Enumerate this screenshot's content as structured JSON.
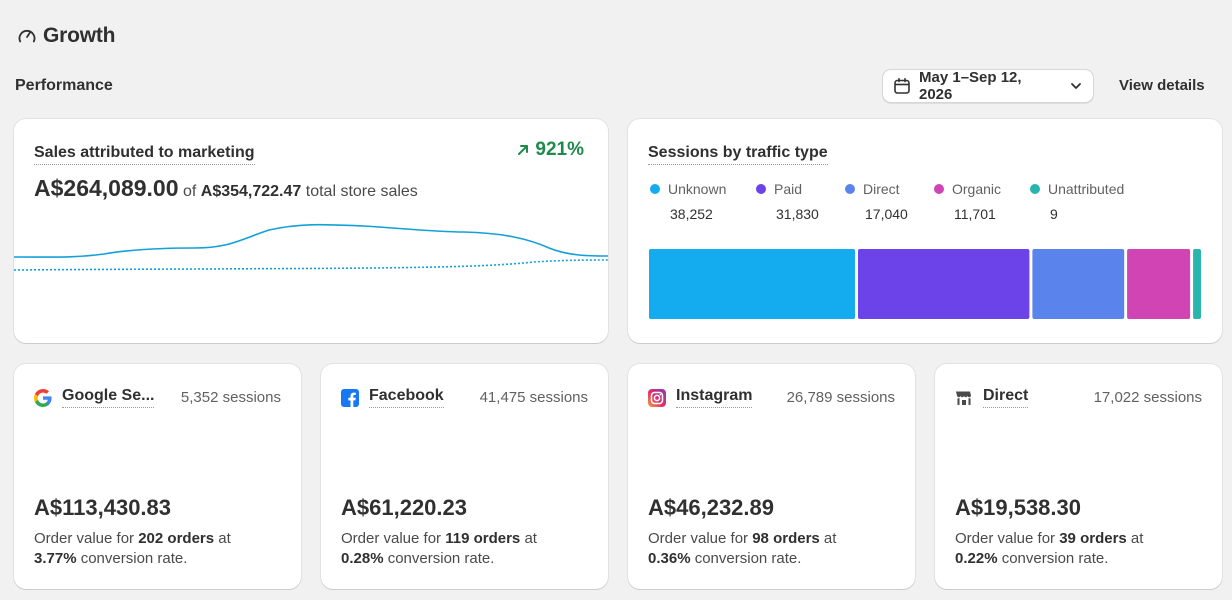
{
  "page": {
    "title": "Growth",
    "title_icon": "gauge-icon"
  },
  "performance": {
    "label": "Performance",
    "date_range": "May 1–Sep 12, 2026",
    "view_details": "View details"
  },
  "sales": {
    "title": "Sales attributed to marketing",
    "growth": "921%",
    "growth_color": "#1f8a4c",
    "amount": "A$264,089.00",
    "of_text": "of",
    "total": "A$354,722.47",
    "total_suffix": "total store sales",
    "line_color": "#13a0d8"
  },
  "sessions": {
    "title": "Sessions by traffic type",
    "types": [
      {
        "label": "Unknown",
        "value": "38,252",
        "color": "#14abef"
      },
      {
        "label": "Paid",
        "value": "31,830",
        "color": "#6b43e8"
      },
      {
        "label": "Direct",
        "value": "17,040",
        "color": "#5a83ec"
      },
      {
        "label": "Organic",
        "value": "11,701",
        "color": "#d044b4"
      },
      {
        "label": "Unattributed",
        "value": "9",
        "color": "#27b5ad"
      }
    ]
  },
  "sources": [
    {
      "name": "Google Se...",
      "icon": "google-icon",
      "sessions": "5,352 sessions",
      "value": "A$113,430.83",
      "desc_prefix": "Order value for ",
      "orders": "202 orders",
      "desc_mid": " at",
      "rate": "3.77%",
      "desc_suffix": " conversion rate."
    },
    {
      "name": "Facebook",
      "icon": "facebook-icon",
      "sessions": "41,475 sessions",
      "value": "A$61,220.23",
      "desc_prefix": "Order value for ",
      "orders": "119 orders",
      "desc_mid": " at",
      "rate": "0.28%",
      "desc_suffix": " conversion rate."
    },
    {
      "name": "Instagram",
      "icon": "instagram-icon",
      "sessions": "26,789 sessions",
      "value": "A$46,232.89",
      "desc_prefix": "Order value for ",
      "orders": "98 orders",
      "desc_mid": " at",
      "rate": "0.36%",
      "desc_suffix": " conversion rate."
    },
    {
      "name": "Direct",
      "icon": "storefront-icon",
      "sessions": "17,022 sessions",
      "value": "A$19,538.30",
      "desc_prefix": "Order value for ",
      "orders": "39 orders",
      "desc_mid": " at",
      "rate": "0.22%",
      "desc_suffix": " conversion rate."
    }
  ]
}
